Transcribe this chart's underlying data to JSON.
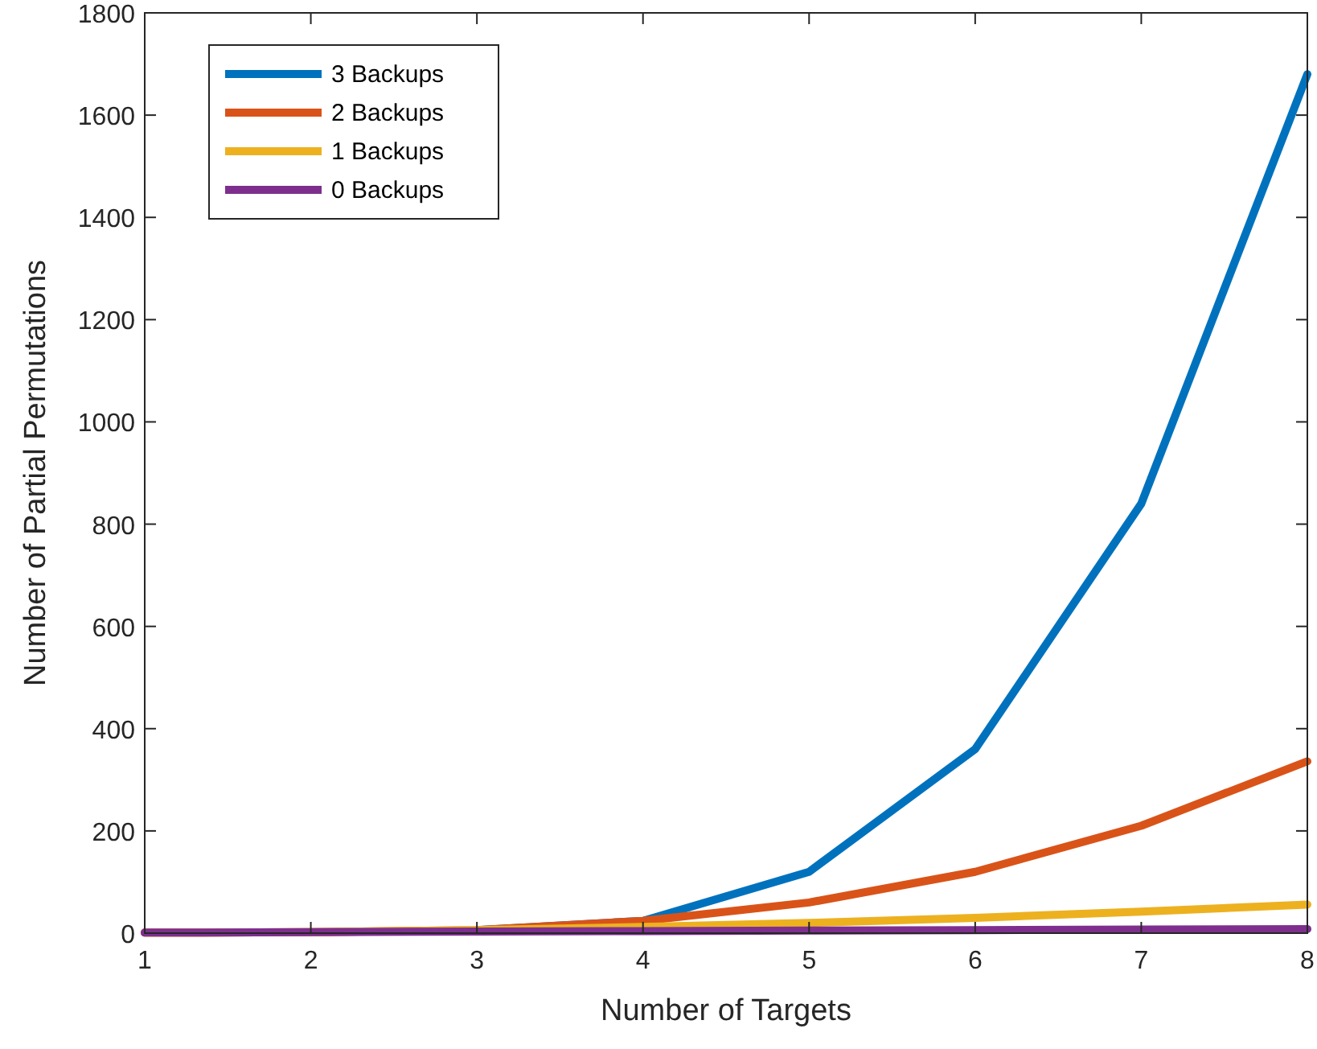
{
  "chart_data": {
    "type": "line",
    "xlabel": "Number of Targets",
    "ylabel": "Number of Partial Permutations",
    "x": [
      1,
      2,
      3,
      4,
      5,
      6,
      7,
      8
    ],
    "series": [
      {
        "name": "3 Backups",
        "color": "#0072bd",
        "values": [
          null,
          null,
          6,
          24,
          120,
          360,
          840,
          1680
        ]
      },
      {
        "name": "2 Backups",
        "color": "#d95319",
        "values": [
          1,
          2,
          6,
          24,
          60,
          120,
          210,
          336
        ]
      },
      {
        "name": "1 Backups",
        "color": "#edb120",
        "values": [
          1,
          2,
          6,
          12,
          20,
          30,
          42,
          56
        ]
      },
      {
        "name": "0 Backups",
        "color": "#7e2f8e",
        "values": [
          1,
          2,
          3,
          4,
          5,
          6,
          7,
          8
        ]
      }
    ],
    "xlim": [
      1,
      8
    ],
    "xticks": [
      1,
      2,
      3,
      4,
      5,
      6,
      7,
      8
    ],
    "ylim": [
      0,
      1800
    ],
    "yticks": [
      0,
      200,
      400,
      600,
      800,
      1000,
      1200,
      1400,
      1600,
      1800
    ],
    "grid": false,
    "legend": "top left",
    "marker": "none",
    "line_style": "solid"
  }
}
